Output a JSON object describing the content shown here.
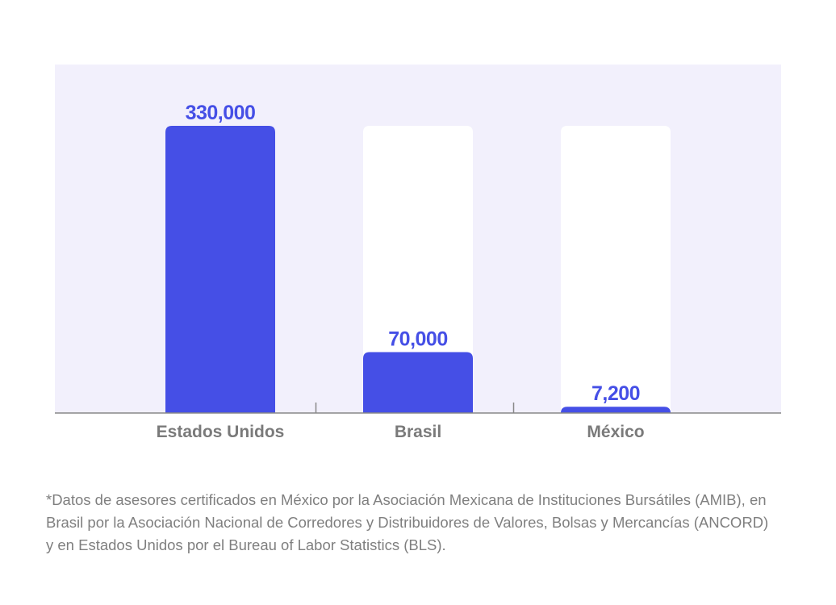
{
  "chart_data": {
    "type": "bar",
    "categories": [
      "Estados Unidos",
      "Brasil",
      "México"
    ],
    "values": [
      330000,
      70000,
      7200
    ],
    "value_labels": [
      "330,000",
      "70,000",
      "7,200"
    ],
    "ylim": [
      0,
      330000
    ],
    "grid": false,
    "legend": "none",
    "colors": {
      "plot_background": "#f2f0fc",
      "bar": "#454fe6",
      "track": "#ffffff",
      "axis": "#888888",
      "category_text": "#7a7a7a",
      "value_text": "#454fe6"
    }
  },
  "footnote": "*Datos de asesores certificados en México por la Asociación Mexicana de Instituciones Bursátiles (AMIB), en Brasil por la Asociación Nacional de Corredores y Distribuidores de Valores, Bolsas y Mercancías (ANCORD) y en Estados Unidos por el Bureau of Labor Statistics (BLS)."
}
